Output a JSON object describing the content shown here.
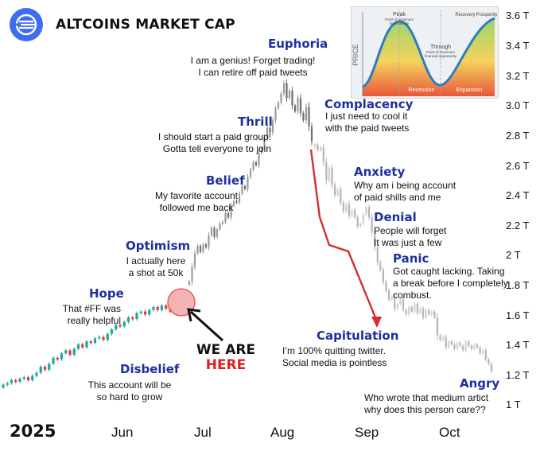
{
  "header": {
    "title": "ALTCOINS MARKET CAP",
    "year": "2025",
    "callout_line1": "WE ARE",
    "callout_line2": "HERE"
  },
  "stages": [
    {
      "name": "Euphoria",
      "text": [
        "I am a genius! Forget trading!",
        "I can retire off paid tweets"
      ]
    },
    {
      "name": "Complacency",
      "text": [
        "I just need to cool it",
        "with the paid tweets"
      ]
    },
    {
      "name": "Thrill",
      "text": [
        "I should start a paid group!",
        "Gotta tell everyone to join"
      ]
    },
    {
      "name": "Belief",
      "text": [
        "My favorite account",
        "followed me back"
      ]
    },
    {
      "name": "Optimism",
      "text": [
        "I actually here",
        "a shot at 50k"
      ]
    },
    {
      "name": "Hope",
      "text": [
        "That #FF was",
        "really helpful"
      ]
    },
    {
      "name": "Disbelief",
      "text": [
        "This account will be",
        "so hard to grow"
      ]
    },
    {
      "name": "Anxiety",
      "text": [
        "Why am i being account",
        "of paid shills and me"
      ]
    },
    {
      "name": "Denial",
      "text": [
        "People will forget",
        "It was just a few"
      ]
    },
    {
      "name": "Panic",
      "text": [
        "Got caught lacking. Taking",
        "a break before I completely",
        "combust."
      ]
    },
    {
      "name": "Capitulation",
      "text": [
        "I’m 100% quitting twitter.",
        "Social media is pointless"
      ]
    },
    {
      "name": "Angry",
      "text": [
        "Who wrote that medium artict",
        "why does this person care??"
      ]
    }
  ],
  "inset": {
    "ylabel": "PRICE",
    "peak": "Peak",
    "peak_sub": [
      "Point of maximum",
      "financial risk"
    ],
    "trough": "Through",
    "trough_sub": [
      "Point of maximum",
      "financial opportunity"
    ],
    "recovery": "Recovery",
    "prosperity": "Prosperity",
    "recession": "Recession",
    "expansion": "Expansion"
  },
  "colors": {
    "stage_title": "#1f2f9c",
    "bull_candle": "#26a69a",
    "bear_candle": "#e53935",
    "dim_candle": "#bdbdbd",
    "arrow": "#d32f2f",
    "callout_here": "#e02020"
  },
  "chart_data": {
    "type": "candlestick",
    "title": "ALTCOINS MARKET CAP",
    "x_ticks": [
      "Jun",
      "Jul",
      "Aug",
      "Sep",
      "Oct"
    ],
    "y_ticks": [
      "1 T",
      "1.2 T",
      "1.4 T",
      "1.6 T",
      "1.8 T",
      "2 T",
      "2.2 T",
      "2.4 T",
      "2.6 T",
      "2.8 T",
      "3.0 T",
      "3.2 T",
      "3.4 T",
      "3.6 T"
    ],
    "ylim": [
      1.0,
      3.6
    ],
    "series": [
      {
        "segment": "green",
        "values": [
          1.13,
          1.14,
          1.16,
          1.15,
          1.17,
          1.18,
          1.16,
          1.19,
          1.21,
          1.25,
          1.23,
          1.27,
          1.31,
          1.3,
          1.34,
          1.36,
          1.33,
          1.37,
          1.4,
          1.38,
          1.42,
          1.41,
          1.44,
          1.45,
          1.43,
          1.47,
          1.5,
          1.53,
          1.52,
          1.55,
          1.58,
          1.57,
          1.61,
          1.62,
          1.6,
          1.63,
          1.65,
          1.63,
          1.66,
          1.64,
          1.62
        ]
      },
      {
        "segment": "gray_rise",
        "values": [
          1.82,
          1.92,
          2.01,
          2.06,
          2.02,
          2.07,
          2.05,
          2.13,
          2.18,
          2.12,
          2.17,
          2.21,
          2.22,
          2.28,
          2.25,
          2.33,
          2.36,
          2.35,
          2.41,
          2.46,
          2.44,
          2.52,
          2.57,
          2.62,
          2.6,
          2.68,
          2.72,
          2.78,
          2.85,
          2.82,
          2.9,
          2.98,
          3.02,
          3.08,
          3.15,
          3.05,
          3.1,
          3.0,
          2.96,
          3.05,
          2.95,
          2.9,
          2.99,
          2.86,
          2.76
        ]
      },
      {
        "segment": "gray_fall",
        "values": [
          2.74,
          2.7,
          2.72,
          2.62,
          2.5,
          2.58,
          2.47,
          2.4,
          2.44,
          2.35,
          2.29,
          2.34,
          2.26,
          2.3,
          2.25,
          2.19,
          2.21,
          2.27,
          2.32,
          2.25,
          2.15,
          2.05,
          1.95,
          1.9,
          1.82,
          1.76,
          1.7,
          1.72,
          1.64,
          1.67,
          1.7,
          1.63,
          1.6,
          1.65,
          1.62,
          1.67,
          1.61,
          1.64,
          1.58,
          1.63,
          1.6,
          1.62,
          1.58,
          1.46,
          1.43,
          1.45,
          1.38,
          1.42,
          1.4,
          1.37,
          1.41,
          1.39,
          1.36,
          1.42,
          1.39,
          1.37,
          1.4,
          1.38,
          1.34,
          1.36,
          1.3,
          1.27,
          1.22
        ]
      }
    ]
  }
}
